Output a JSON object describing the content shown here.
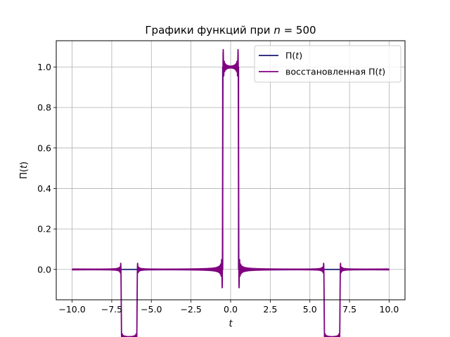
{
  "chart_data": {
    "type": "line",
    "title": "Графики функций при n = 500",
    "title_prefix": "Графики функций при ",
    "title_var": "n",
    "title_suffix": " = 500",
    "xlabel": "t",
    "ylabel": "Π(t)",
    "xlim": [
      -11.0,
      11.0
    ],
    "ylim": [
      -0.15,
      1.13
    ],
    "xticks": [
      -10.0,
      -7.5,
      -5.0,
      -2.5,
      0.0,
      2.5,
      5.0,
      7.5,
      10.0
    ],
    "xtick_labels": [
      "−10.0",
      "−7.5",
      "−5.0",
      "−2.5",
      "0.0",
      "2.5",
      "5.0",
      "7.5",
      "10.0"
    ],
    "yticks": [
      0.0,
      0.2,
      0.4,
      0.6,
      0.8,
      1.0
    ],
    "ytick_labels": [
      "0.0",
      "0.2",
      "0.4",
      "0.6",
      "0.8",
      "1.0"
    ],
    "grid": true,
    "legend_position": "top-right",
    "x_range": [
      -10.0,
      10.0
    ],
    "pulse_edges": [
      -0.5,
      0.5
    ],
    "series": [
      {
        "name": "Π(t)",
        "color": "#191970",
        "kind": "rect"
      },
      {
        "name": "восстановленная Π(t)",
        "color": "#800080",
        "kind": "reconstructed",
        "overshoot_max": 1.08,
        "undershoot_min": -0.09
      }
    ],
    "legend": [
      {
        "label_prefix": "Π(",
        "label_var": "t",
        "label_suffix": ")",
        "color": "#191970"
      },
      {
        "label_prefix": "восстановленная Π(",
        "label_var": "t",
        "label_suffix": ")",
        "color": "#800080"
      }
    ]
  }
}
